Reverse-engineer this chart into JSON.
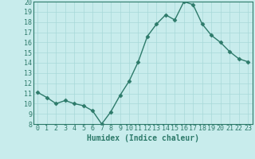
{
  "x": [
    0,
    1,
    2,
    3,
    4,
    5,
    6,
    7,
    8,
    9,
    10,
    11,
    12,
    13,
    14,
    15,
    16,
    17,
    18,
    19,
    20,
    21,
    22,
    23
  ],
  "y": [
    11.1,
    10.6,
    10.0,
    10.3,
    10.0,
    9.8,
    9.3,
    8.0,
    9.2,
    10.8,
    12.2,
    14.1,
    16.6,
    17.8,
    18.7,
    18.2,
    20.0,
    19.7,
    17.8,
    16.7,
    16.0,
    15.1,
    14.4,
    14.1
  ],
  "line_color": "#2d7a6a",
  "marker": "D",
  "markersize": 2.5,
  "linewidth": 1.0,
  "bg_color": "#c8ecec",
  "grid_color": "#a8d8d8",
  "xlabel": "Humidex (Indice chaleur)",
  "xlabel_fontsize": 7,
  "tick_fontsize": 6,
  "ylim": [
    8,
    20
  ],
  "yticks": [
    8,
    9,
    10,
    11,
    12,
    13,
    14,
    15,
    16,
    17,
    18,
    19,
    20
  ],
  "xticks": [
    0,
    1,
    2,
    3,
    4,
    5,
    6,
    7,
    8,
    9,
    10,
    11,
    12,
    13,
    14,
    15,
    16,
    17,
    18,
    19,
    20,
    21,
    22,
    23
  ],
  "axis_color": "#2d7a6a"
}
